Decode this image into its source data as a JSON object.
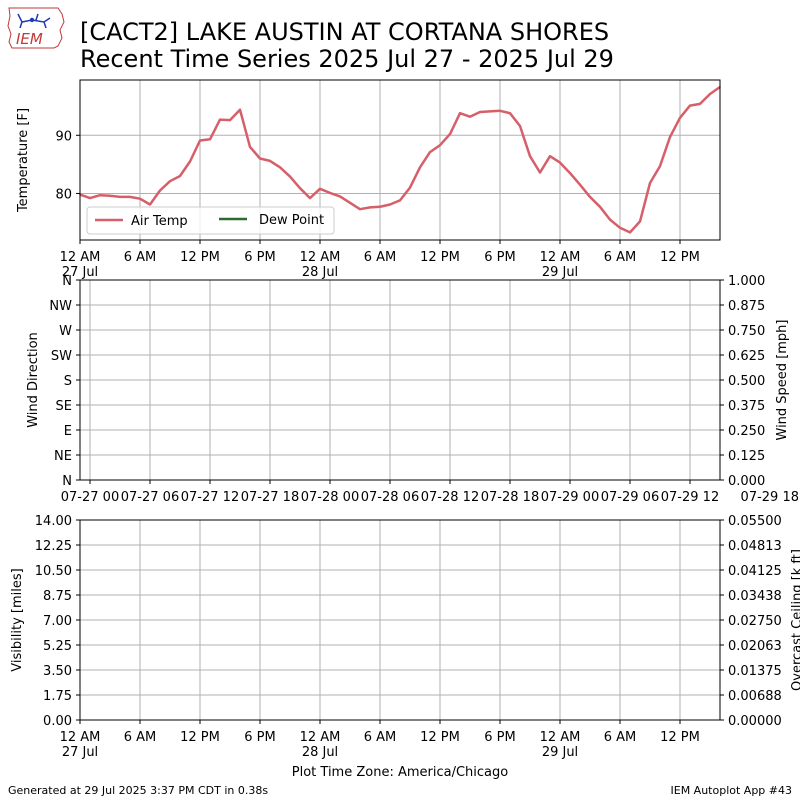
{
  "header": {
    "logo_text": "IEM",
    "title_line1": "[CACT2] LAKE AUSTIN AT CORTANA SHORES",
    "title_line2": "Recent Time Series 2025 Jul 27 - 2025 Jul 29"
  },
  "footer": {
    "generated": "Generated at 29 Jul 2025 3:37 PM CDT in 0.38s",
    "app": "IEM Autoplot App #43",
    "timezone_label": "Plot Time Zone: America/Chicago"
  },
  "colors": {
    "air_temp": "#d65f6a",
    "dew_point": "#2e6b30",
    "grid": "#b0b0b0",
    "ceiling_label": "#008000"
  },
  "chart_data": [
    {
      "type": "line",
      "ylabel": "Temperature [F]",
      "xlim": [
        0,
        64
      ],
      "ylim": [
        72,
        99.5
      ],
      "yticks": [
        80,
        90
      ],
      "grid": true,
      "legend_placement": "lower-left",
      "legend": [
        "Air Temp",
        "Dew Point"
      ],
      "xticks": [
        {
          "h": 0,
          "label": "12 AM",
          "sub": "27 Jul"
        },
        {
          "h": 6,
          "label": "6 AM",
          "sub": ""
        },
        {
          "h": 12,
          "label": "12 PM",
          "sub": ""
        },
        {
          "h": 18,
          "label": "6 PM",
          "sub": ""
        },
        {
          "h": 24,
          "label": "12 AM",
          "sub": "28 Jul"
        },
        {
          "h": 30,
          "label": "6 AM",
          "sub": ""
        },
        {
          "h": 36,
          "label": "12 PM",
          "sub": ""
        },
        {
          "h": 42,
          "label": "6 PM",
          "sub": ""
        },
        {
          "h": 48,
          "label": "12 AM",
          "sub": "29 Jul"
        },
        {
          "h": 54,
          "label": "6 AM",
          "sub": ""
        },
        {
          "h": 60,
          "label": "12 PM",
          "sub": ""
        }
      ],
      "series": [
        {
          "name": "Air Temp",
          "x": [
            0,
            1,
            2,
            3,
            4,
            5,
            6,
            7,
            8,
            9,
            10,
            11,
            12,
            13,
            14,
            15,
            16,
            17,
            18,
            19,
            20,
            21,
            22,
            23,
            24,
            25,
            26,
            27,
            28,
            29,
            30,
            31,
            32,
            33,
            34,
            35,
            36,
            37,
            38,
            39,
            40,
            41,
            42,
            43,
            44,
            45,
            46,
            47,
            48,
            49,
            50,
            51,
            52,
            53,
            54,
            55,
            56,
            57,
            58,
            59,
            60,
            61,
            62,
            63,
            64
          ],
          "y": [
            79.8,
            79.2,
            79.7,
            79.6,
            79.4,
            79.4,
            79.1,
            78.1,
            80.5,
            82.1,
            83.0,
            85.5,
            89.1,
            89.3,
            92.7,
            92.6,
            94.4,
            88.0,
            86.0,
            85.6,
            84.5,
            82.9,
            80.9,
            79.2,
            80.8,
            80.1,
            79.5,
            78.4,
            77.3,
            77.6,
            77.7,
            78.1,
            78.8,
            81.0,
            84.5,
            87.1,
            88.3,
            90.2,
            93.8,
            93.2,
            94.0,
            94.1,
            94.2,
            93.8,
            91.6,
            86.4,
            83.6,
            86.4,
            85.3,
            83.5,
            81.5,
            79.4,
            77.7,
            75.5,
            74.1,
            73.3,
            75.2,
            81.8,
            84.7,
            89.7,
            93.0,
            95.1,
            95.4,
            97.1,
            98.3
          ]
        },
        {
          "name": "Dew Point",
          "x": [],
          "y": []
        }
      ]
    },
    {
      "type": "line",
      "ylabel": "Wind Direction",
      "y2label": "Wind Speed [mph]",
      "xlim": [
        -1,
        63
      ],
      "ylim": [
        0,
        360
      ],
      "y2lim": [
        0,
        1
      ],
      "yticks": [
        0,
        45,
        90,
        135,
        180,
        225,
        270,
        315,
        360
      ],
      "ytick_labels": [
        "N",
        "NE",
        "E",
        "SE",
        "S",
        "SW",
        "W",
        "NW",
        "N"
      ],
      "y2ticks": [
        "0.000",
        "0.125",
        "0.250",
        "0.375",
        "0.500",
        "0.625",
        "0.750",
        "0.875",
        "1.000"
      ],
      "grid": true,
      "xticks": [
        {
          "h": 0,
          "label": "07-27 00"
        },
        {
          "h": 6,
          "label": "07-27 06"
        },
        {
          "h": 12,
          "label": "07-27 12"
        },
        {
          "h": 18,
          "label": "07-27 18"
        },
        {
          "h": 24,
          "label": "07-28 00"
        },
        {
          "h": 30,
          "label": "07-28 06"
        },
        {
          "h": 36,
          "label": "07-28 12"
        },
        {
          "h": 42,
          "label": "07-28 18"
        },
        {
          "h": 48,
          "label": "07-29 00"
        },
        {
          "h": 54,
          "label": "07-29 06"
        },
        {
          "h": 60,
          "label": "07-29 12"
        },
        {
          "h": 66,
          "label": "07-29 18"
        }
      ],
      "series": []
    },
    {
      "type": "line",
      "ylabel": "Visibility [miles]",
      "y2label": "Overcast Ceiling [k ft]",
      "xlim": [
        0,
        64
      ],
      "ylim": [
        0,
        14
      ],
      "y2lim": [
        0,
        0.055
      ],
      "yticks": [
        "0.00",
        "1.75",
        "3.50",
        "5.25",
        "7.00",
        "8.75",
        "10.50",
        "12.25",
        "14.00"
      ],
      "y2ticks": [
        "0.00000",
        "0.00688",
        "0.01375",
        "0.02063",
        "0.02750",
        "0.03438",
        "0.04125",
        "0.04813",
        "0.05500"
      ],
      "grid": true,
      "xticks": [
        {
          "h": 0,
          "label": "12 AM",
          "sub": "27 Jul"
        },
        {
          "h": 6,
          "label": "6 AM",
          "sub": ""
        },
        {
          "h": 12,
          "label": "12 PM",
          "sub": ""
        },
        {
          "h": 18,
          "label": "6 PM",
          "sub": ""
        },
        {
          "h": 24,
          "label": "12 AM",
          "sub": "28 Jul"
        },
        {
          "h": 30,
          "label": "6 AM",
          "sub": ""
        },
        {
          "h": 36,
          "label": "12 PM",
          "sub": ""
        },
        {
          "h": 42,
          "label": "6 PM",
          "sub": ""
        },
        {
          "h": 48,
          "label": "12 AM",
          "sub": "29 Jul"
        },
        {
          "h": 54,
          "label": "6 AM",
          "sub": ""
        },
        {
          "h": 60,
          "label": "12 PM",
          "sub": ""
        }
      ],
      "series": []
    }
  ]
}
